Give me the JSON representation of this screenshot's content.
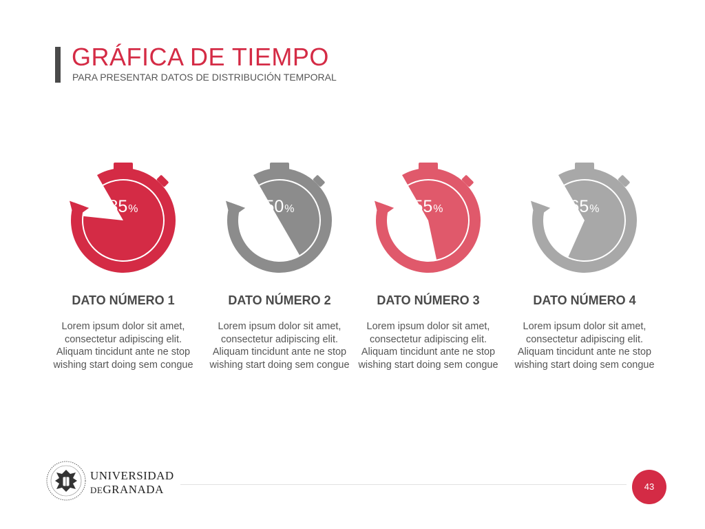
{
  "slide": {
    "title": "GRÁFICA DE TIEMPO",
    "subtitle": "PARA PRESENTAR DATOS DE DISTRIBUCIÓN TEMPORAL",
    "page_number": "43"
  },
  "brand": {
    "line1": "UNIVERSIDAD",
    "line2_prefix": "DE",
    "line2_main": "GRANADA"
  },
  "colors": {
    "accent_red": "#d42b45",
    "dark_gray": "#8c8c8c",
    "light_red": "#e0596b",
    "light_gray": "#a8a8a8"
  },
  "items": [
    {
      "percent": "85",
      "symbol": "%",
      "value": 85,
      "color": "#d42b45",
      "title": "DATO NÚMERO 1",
      "text": "Lorem ipsum dolor sit amet, consectetur adipiscing elit. Aliquam tincidunt ante ne stop wishing start doing sem congue"
    },
    {
      "percent": "50",
      "symbol": "%",
      "value": 50,
      "color": "#8c8c8c",
      "title": "DATO NÚMERO 2",
      "text": "Lorem ipsum dolor sit amet, consectetur adipiscing elit. Aliquam tincidunt ante ne stop wishing start doing sem congue"
    },
    {
      "percent": "55",
      "symbol": "%",
      "value": 55,
      "color": "#e0596b",
      "title": "DATO NÚMERO 3",
      "text": "Lorem ipsum dolor sit amet, consectetur adipiscing elit. Aliquam tincidunt ante ne stop wishing start doing sem congue"
    },
    {
      "percent": "65",
      "symbol": "%",
      "value": 65,
      "color": "#a8a8a8",
      "title": "DATO NÚMERO 4",
      "text": "Lorem ipsum dolor sit amet, consectetur adipiscing elit. Aliquam tincidunt ante ne stop wishing start doing sem congue"
    }
  ]
}
